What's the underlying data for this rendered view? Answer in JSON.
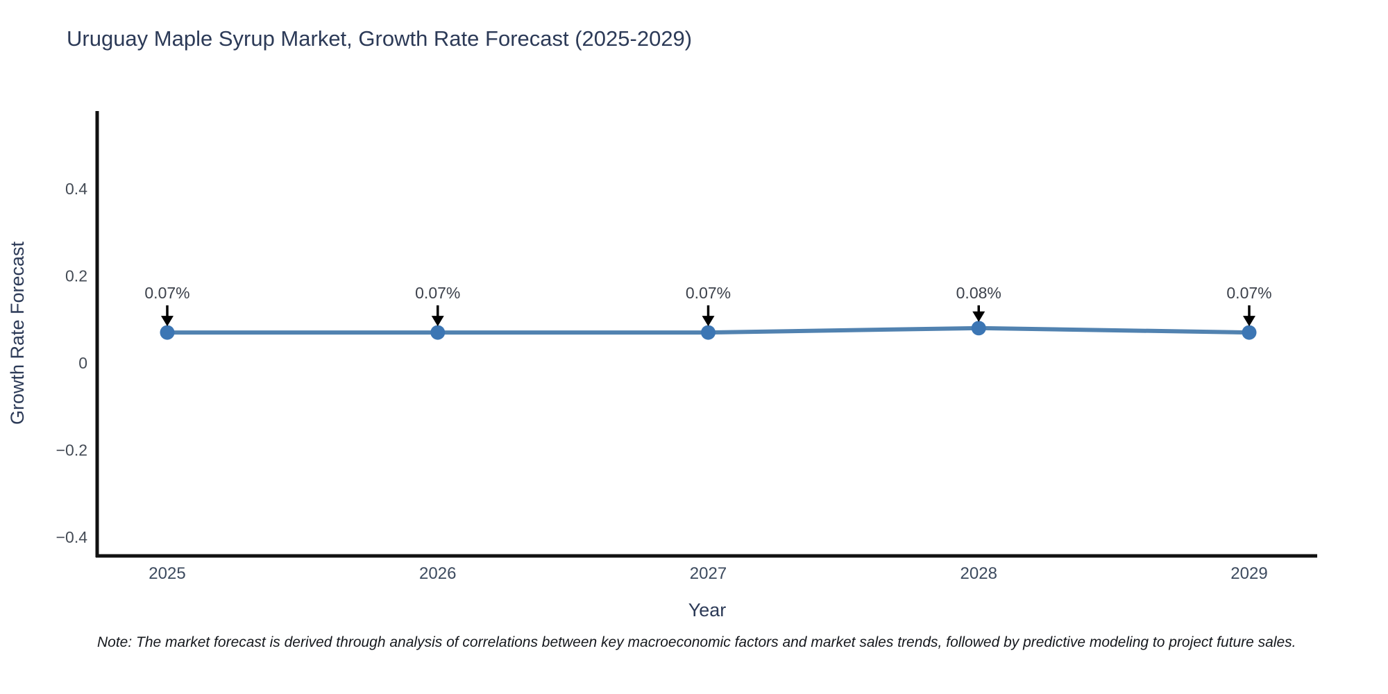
{
  "title": "Uruguay Maple Syrup Market, Growth Rate Forecast (2025-2029)",
  "footnote": "Note: The market forecast is derived through analysis of correlations between key macroeconomic factors and market sales trends, followed by predictive modeling to project future sales.",
  "chart_data": {
    "type": "line",
    "title": "Uruguay Maple Syrup Market, Growth Rate Forecast (2025-2029)",
    "xlabel": "Year",
    "ylabel": "Growth Rate Forecast",
    "x": [
      2025,
      2026,
      2027,
      2028,
      2029
    ],
    "x_tick_labels": [
      "2025",
      "2026",
      "2027",
      "2028",
      "2029"
    ],
    "series": [
      {
        "name": "Growth Rate Forecast",
        "values": [
          0.07,
          0.07,
          0.07,
          0.08,
          0.07
        ]
      }
    ],
    "point_labels": [
      "0.07%",
      "0.07%",
      "0.07%",
      "0.08%",
      "0.07%"
    ],
    "y_ticks": [
      0.4,
      0.2,
      0,
      -0.2,
      -0.4
    ],
    "y_tick_labels": [
      "0.4",
      "0.2",
      "0",
      "−0.2",
      "−0.4"
    ],
    "ylim": [
      -0.45,
      0.58
    ],
    "grid": false,
    "legend_position": "none",
    "colors": {
      "line": "#5182b0",
      "marker": "#3c76b4",
      "axis": "#111111",
      "title_text": "#2c3a57",
      "tick_text": "#444b55",
      "annotation_text": "#3c414b",
      "arrow": "#000000",
      "background": "#ffffff"
    }
  }
}
